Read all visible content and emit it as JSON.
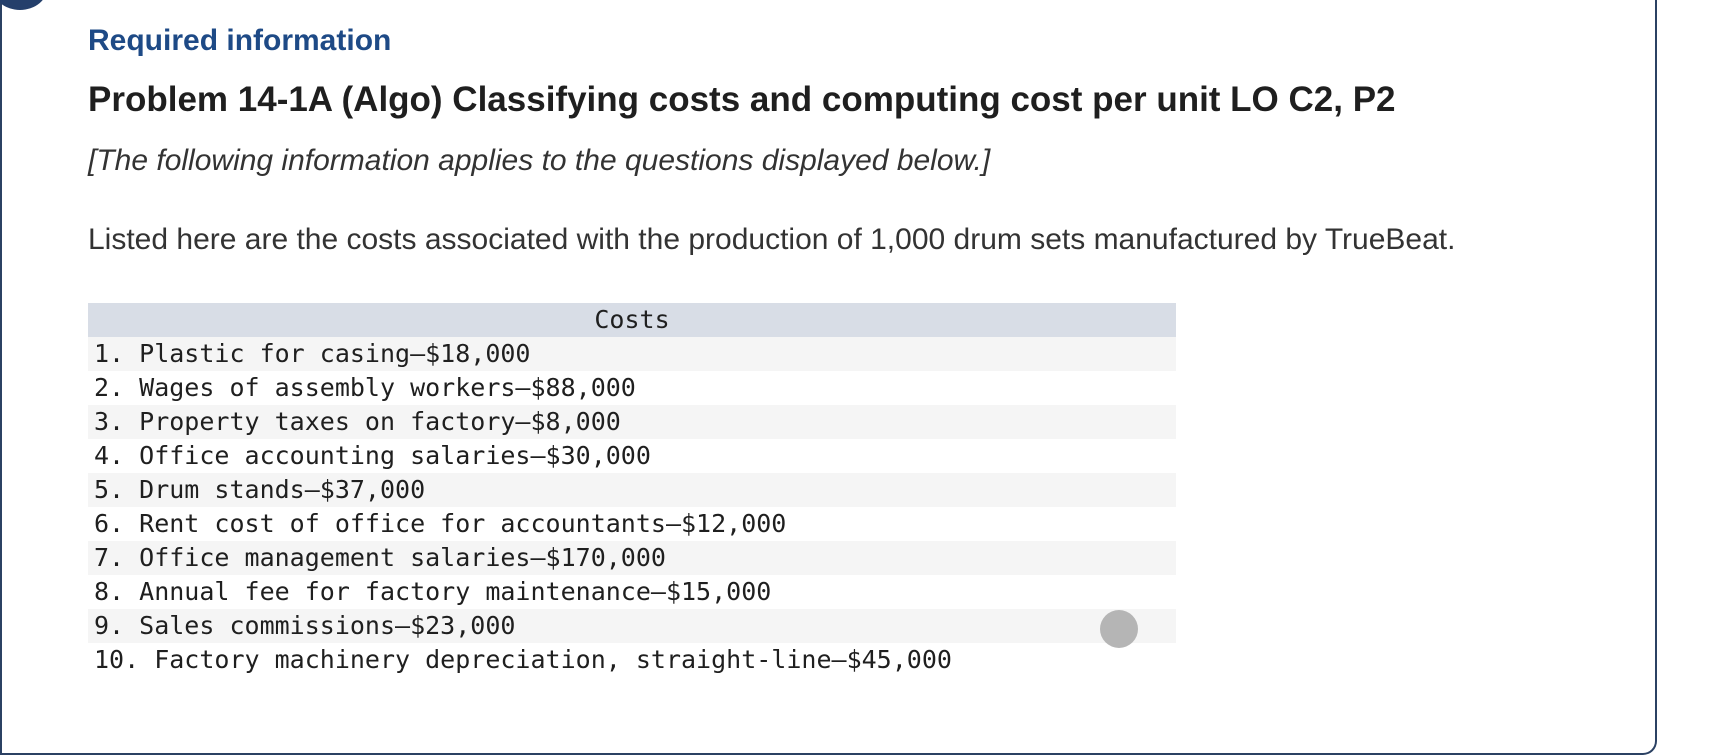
{
  "header": {
    "info_icon": "more-icon",
    "required_label": "Required information",
    "problem_title": "Problem 14-1A (Algo) Classifying costs and computing cost per unit LO C2, P2"
  },
  "body": {
    "note": "[The following information applies to the questions displayed below.]",
    "intro": "Listed here are the costs associated with the production of 1,000 drum sets manufactured by TrueBeat."
  },
  "costs_table": {
    "header": "Costs",
    "rows": [
      "1. Plastic for casing—$18,000",
      "2. Wages of assembly workers—$88,000",
      "3. Property taxes on factory—$8,000",
      "4. Office accounting salaries—$30,000",
      "5. Drum stands—$37,000",
      "6. Rent cost of office for accountants—$12,000",
      "7. Office management salaries—$170,000",
      "8. Annual fee for factory maintenance—$15,000",
      "9. Sales commissions—$23,000",
      "10. Factory machinery depreciation, straight-line—$45,000"
    ]
  },
  "colors": {
    "accent": "#1e4a86",
    "card_border": "#2b4163",
    "table_header_bg": "#d8dde6",
    "stripe_bg": "#f5f5f5"
  }
}
